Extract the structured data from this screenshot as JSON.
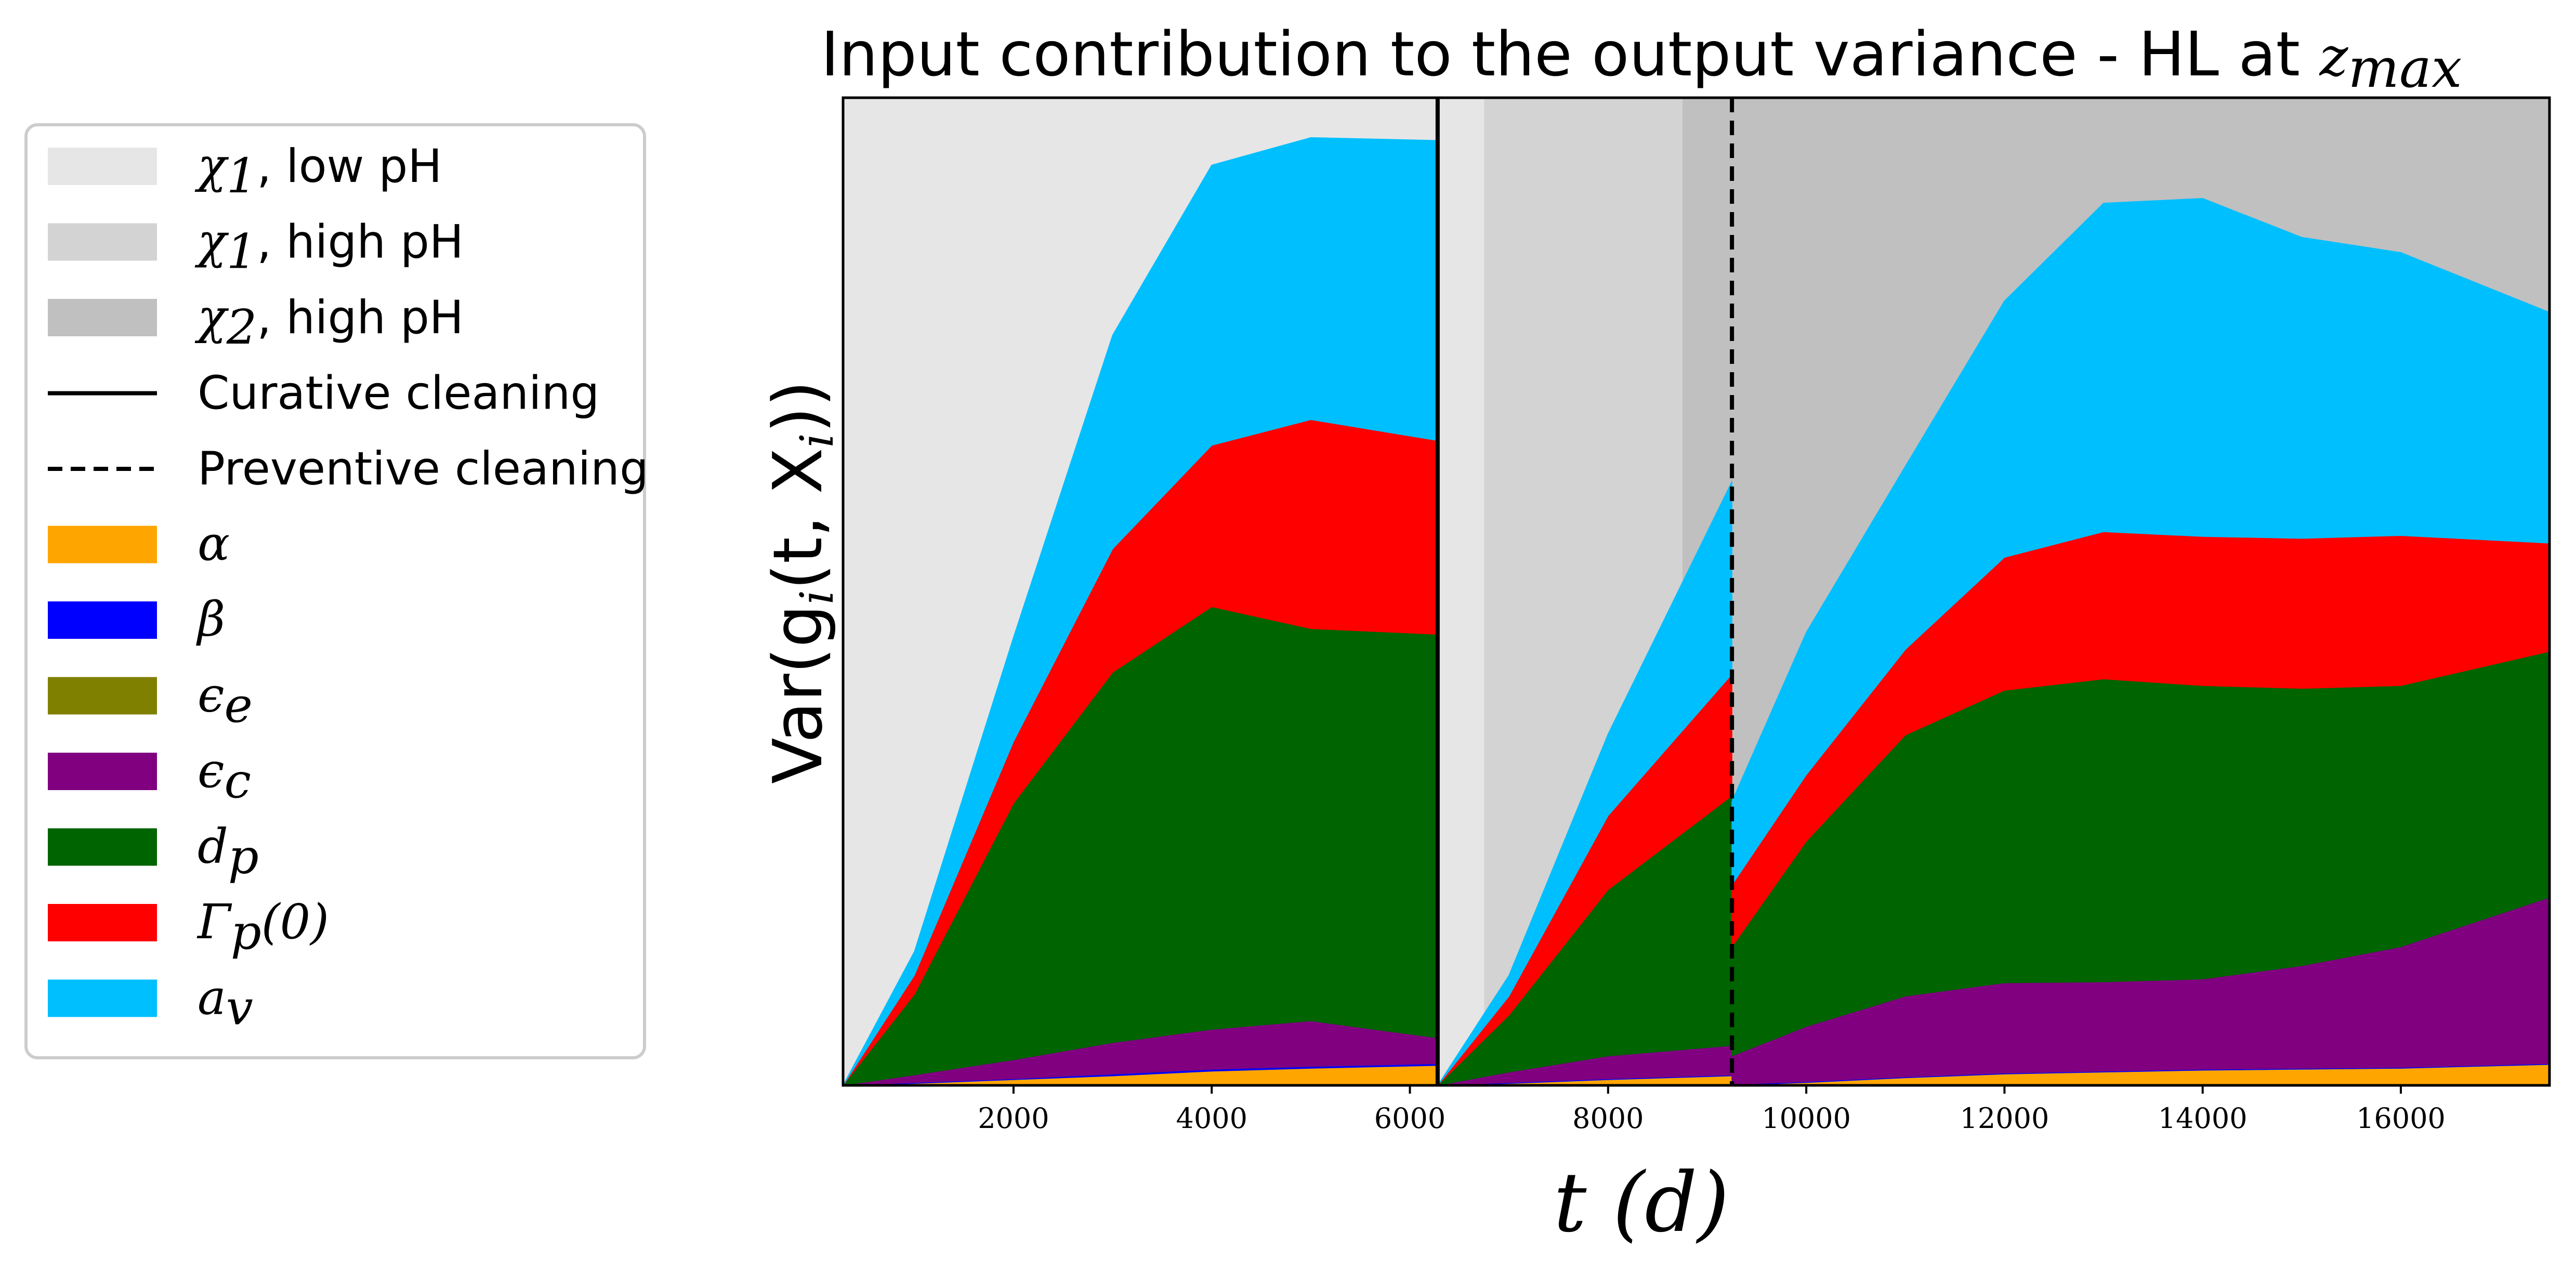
{
  "chart_data": {
    "type": "area",
    "stacked": true,
    "title": "Input contribution to the output variance - HL at ",
    "title_math": "zmax",
    "title_math_base": "z",
    "title_math_sub": "max",
    "xlabel": "t (d)",
    "ylabel": "Var(g",
    "ylabel_sub": "i",
    "ylabel_tail": "(t, X",
    "ylabel_sub2": "i",
    "ylabel_end": "))",
    "xlim": [
      280,
      17500
    ],
    "ylim": [
      0,
      1.04
    ],
    "xticks": [
      2000,
      4000,
      6000,
      8000,
      10000,
      12000,
      14000,
      16000
    ],
    "yticks": [],
    "grid": false,
    "legend_position": "outside-left",
    "regions": [
      {
        "name": "χ1, low pH",
        "x0": 280,
        "x1": 6750,
        "color": "#e6e6e6"
      },
      {
        "name": "χ1, high pH",
        "x0": 6750,
        "x1": 8750,
        "color": "#d3d3d3"
      },
      {
        "name": "χ2, high pH",
        "x0": 8750,
        "x1": 17500,
        "color": "#c0c0c0"
      }
    ],
    "lines": [
      {
        "name": "Curative cleaning",
        "x": 6280,
        "style": "solid"
      },
      {
        "name": "Preventive cleaning",
        "x": 9250,
        "style": "dashed"
      }
    ],
    "series": [
      {
        "name": "α",
        "color": "#ffa500",
        "segments": [
          {
            "x": [
              280,
              1000,
              2000,
              3000,
              4000,
              5000,
              6280
            ],
            "values": [
              0.0,
              0.002,
              0.006,
              0.01,
              0.015,
              0.018,
              0.021
            ]
          },
          {
            "x": [
              6280,
              7000,
              8000,
              9250
            ],
            "values": [
              0.0,
              0.002,
              0.006,
              0.01
            ]
          },
          {
            "x": [
              9250,
              10000,
              11000,
              12000,
              13000,
              14000,
              15000,
              16000,
              17500
            ],
            "values": [
              0.0,
              0.003,
              0.008,
              0.012,
              0.014,
              0.016,
              0.017,
              0.018,
              0.022
            ]
          }
        ]
      },
      {
        "name": "β",
        "color": "#0000ff",
        "segments": [
          {
            "x": [
              280,
              1000,
              2000,
              3000,
              4000,
              5000,
              6280
            ],
            "values": [
              0.0,
              0.001,
              0.001,
              0.002,
              0.002,
              0.002,
              0.002
            ]
          },
          {
            "x": [
              6280,
              7000,
              8000,
              9250
            ],
            "values": [
              0.0,
              0.001,
              0.001,
              0.001
            ]
          },
          {
            "x": [
              9250,
              10000,
              11000,
              12000,
              13000,
              14000,
              15000,
              16000,
              17500
            ],
            "values": [
              0.001,
              0.001,
              0.001,
              0.001,
              0.001,
              0.001,
              0.001,
              0.001,
              0.001
            ]
          }
        ]
      },
      {
        "name": "εe",
        "color": "#808000",
        "segments": [
          {
            "x": [
              280,
              1000,
              2000,
              3000,
              4000,
              5000,
              6280
            ],
            "values": [
              0.0,
              0.0,
              0.0,
              0.0,
              0.0,
              0.0,
              0.0
            ]
          },
          {
            "x": [
              6280,
              7000,
              8000,
              9250
            ],
            "values": [
              0.0,
              0.0,
              0.0,
              0.0
            ]
          },
          {
            "x": [
              9250,
              10000,
              11000,
              12000,
              13000,
              14000,
              15000,
              16000,
              17500
            ],
            "values": [
              0.0,
              0.0,
              0.0,
              0.0,
              0.0,
              0.0,
              0.0,
              0.0,
              0.0
            ]
          }
        ]
      },
      {
        "name": "εc",
        "color": "#800080",
        "segments": [
          {
            "x": [
              280,
              1000,
              2000,
              3000,
              4000,
              5000,
              6280
            ],
            "values": [
              0.0,
              0.008,
              0.02,
              0.033,
              0.042,
              0.048,
              0.027
            ]
          },
          {
            "x": [
              6280,
              7000,
              8000,
              9250
            ],
            "values": [
              0.0,
              0.011,
              0.024,
              0.031
            ]
          },
          {
            "x": [
              9250,
              10000,
              11000,
              12000,
              13000,
              14000,
              15000,
              16000,
              17500
            ],
            "values": [
              0.03,
              0.058,
              0.085,
              0.095,
              0.094,
              0.095,
              0.108,
              0.127,
              0.175
            ]
          }
        ]
      },
      {
        "name": "dp",
        "color": "#006400",
        "segments": [
          {
            "x": [
              280,
              1000,
              2000,
              3000,
              4000,
              5000,
              6280
            ],
            "values": [
              0.0,
              0.085,
              0.27,
              0.39,
              0.445,
              0.413,
              0.425
            ]
          },
          {
            "x": [
              6280,
              7000,
              8000,
              9250
            ],
            "values": [
              0.0,
              0.06,
              0.175,
              0.263
            ]
          },
          {
            "x": [
              9250,
              10000,
              11000,
              12000,
              13000,
              14000,
              15000,
              16000,
              17500
            ],
            "values": [
              0.115,
              0.195,
              0.275,
              0.308,
              0.319,
              0.309,
              0.292,
              0.275,
              0.259
            ]
          }
        ]
      },
      {
        "name": "Γp(0)",
        "color": "#ff0000",
        "segments": [
          {
            "x": [
              280,
              1000,
              2000,
              3000,
              4000,
              5000,
              6280
            ],
            "values": [
              0.0,
              0.02,
              0.065,
              0.13,
              0.17,
              0.22,
              0.204
            ]
          },
          {
            "x": [
              6280,
              7000,
              8000,
              9250
            ],
            "values": [
              0.0,
              0.02,
              0.078,
              0.128
            ]
          },
          {
            "x": [
              9250,
              10000,
              11000,
              12000,
              13000,
              14000,
              15000,
              16000,
              17500
            ],
            "values": [
              0.065,
              0.07,
              0.09,
              0.14,
              0.155,
              0.157,
              0.158,
              0.158,
              0.114
            ]
          }
        ]
      },
      {
        "name": "av",
        "color": "#00bfff",
        "segments": [
          {
            "x": [
              280,
              1000,
              2000,
              3000,
              4000,
              5000,
              6280
            ],
            "values": [
              0.0,
              0.025,
              0.11,
              0.225,
              0.295,
              0.297,
              0.316
            ]
          },
          {
            "x": [
              6280,
              7000,
              8000,
              9250
            ],
            "values": [
              0.0,
              0.022,
              0.086,
              0.203
            ]
          },
          {
            "x": [
              9250,
              10000,
              11000,
              12000,
              13000,
              14000,
              15000,
              16000,
              17500
            ],
            "values": [
              0.088,
              0.15,
              0.193,
              0.27,
              0.346,
              0.356,
              0.317,
              0.298,
              0.243
            ]
          }
        ]
      }
    ]
  },
  "legend": {
    "items": [
      {
        "key": "chi1-low",
        "kind": "patch",
        "color": "#e6e6e6",
        "math": "χ",
        "sub": "1",
        "text": ", low pH"
      },
      {
        "key": "chi1-high",
        "kind": "patch",
        "color": "#d3d3d3",
        "math": "χ",
        "sub": "1",
        "text": ", high pH"
      },
      {
        "key": "chi2-high",
        "kind": "patch",
        "color": "#c0c0c0",
        "math": "χ",
        "sub": "2",
        "text": ", high pH"
      },
      {
        "key": "curative",
        "kind": "line-solid",
        "color": "#000000",
        "math": "",
        "sub": "",
        "text": "Curative cleaning"
      },
      {
        "key": "preventive",
        "kind": "line-dashed",
        "color": "#000000",
        "math": "",
        "sub": "",
        "text": "Preventive cleaning"
      },
      {
        "key": "alpha",
        "kind": "patch",
        "color": "#ffa500",
        "math": "α",
        "sub": "",
        "text": ""
      },
      {
        "key": "beta",
        "kind": "patch",
        "color": "#0000ff",
        "math": "β",
        "sub": "",
        "text": ""
      },
      {
        "key": "eps-e",
        "kind": "patch",
        "color": "#808000",
        "math": "ϵ",
        "sub": "e",
        "text": ""
      },
      {
        "key": "eps-c",
        "kind": "patch",
        "color": "#800080",
        "math": "ϵ",
        "sub": "c",
        "text": ""
      },
      {
        "key": "dp",
        "kind": "patch",
        "color": "#006400",
        "math": "d",
        "sub": "p",
        "text": ""
      },
      {
        "key": "gamma",
        "kind": "patch",
        "color": "#ff0000",
        "math": "Γ",
        "sub": "p",
        "text": "(0)"
      },
      {
        "key": "av",
        "kind": "patch",
        "color": "#00bfff",
        "math": "a",
        "sub": "v",
        "text": ""
      }
    ]
  }
}
